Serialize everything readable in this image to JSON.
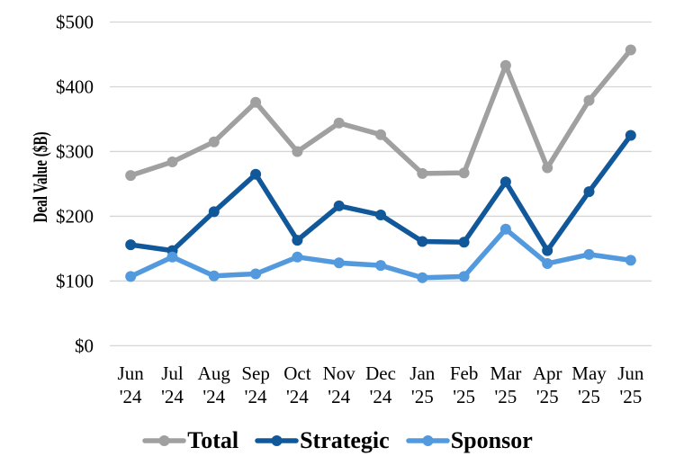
{
  "chart_data": {
    "type": "line",
    "ylabel": "Deal Value ($B)",
    "categories": [
      "Jun '24",
      "Jul '24",
      "Aug '24",
      "Sep '24",
      "Oct '24",
      "Nov '24",
      "Dec '24",
      "Jan '25",
      "Feb '25",
      "Mar '25",
      "Apr '25",
      "May '25",
      "Jun '25"
    ],
    "series": [
      {
        "name": "Total",
        "color": "#A0A0A0",
        "values": [
          263,
          284,
          315,
          376,
          300,
          344,
          326,
          266,
          267,
          433,
          275,
          379,
          457
        ]
      },
      {
        "name": "Strategic",
        "color": "#11589B",
        "values": [
          156,
          147,
          207,
          265,
          163,
          216,
          202,
          161,
          160,
          253,
          147,
          238,
          325
        ]
      },
      {
        "name": "Sponsor",
        "color": "#5299DD",
        "values": [
          107,
          137,
          108,
          111,
          137,
          128,
          124,
          105,
          107,
          180,
          127,
          141,
          132
        ]
      }
    ],
    "ylim": [
      0,
      500
    ],
    "y_tick_step": 100,
    "y_tick_labels": [
      "$0",
      "$100",
      "$200",
      "$300",
      "$400",
      "$500"
    ],
    "grid": "horizontal",
    "gridline_color": "#D6D6D6",
    "legend_position": "bottom"
  }
}
